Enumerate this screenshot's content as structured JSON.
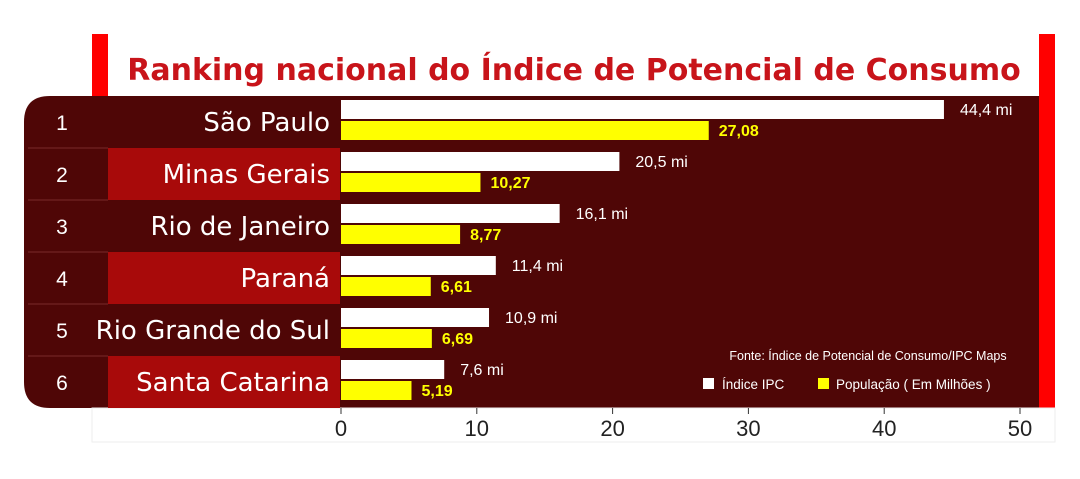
{
  "chart_data": {
    "type": "bar",
    "orientation": "horizontal",
    "title": "Ranking nacional do Índice de Potencial de Consumo",
    "ranks": [
      "1",
      "2",
      "3",
      "4",
      "5",
      "6"
    ],
    "categories": [
      "São Paulo",
      "Minas Gerais",
      "Rio de Janeiro",
      "Paraná",
      "Rio Grande do Sul",
      "Santa Catarina"
    ],
    "series": [
      {
        "name": "Índice IPC",
        "values": [
          44.4,
          20.5,
          16.1,
          11.4,
          10.9,
          7.6
        ],
        "labels": [
          "44,4 mi",
          "20,5 mi",
          "16,1 mi",
          "11,4 mi",
          "10,9 mi",
          "7,6 mi"
        ],
        "color": "#ffffff"
      },
      {
        "name": "População ( Em Milhões )",
        "values": [
          27.08,
          10.27,
          8.77,
          6.61,
          6.69,
          5.19
        ],
        "labels": [
          "27,08",
          "10,27",
          "8,77",
          "6,61",
          "6,69",
          "5,19"
        ],
        "color": "#ffff00"
      }
    ],
    "xlim": [
      0,
      50
    ],
    "xticks": [
      "0",
      "10",
      "20",
      "30",
      "40",
      "50"
    ],
    "source": "Fonte: Índice de Potencial de Consumo/IPC Maps",
    "legend_position": "bottom-right",
    "colors": {
      "accent_red": "#ff0000",
      "dark_maroon": "#4f0606",
      "row_red": "#a80a0a",
      "title_color": "#c8141a"
    }
  }
}
